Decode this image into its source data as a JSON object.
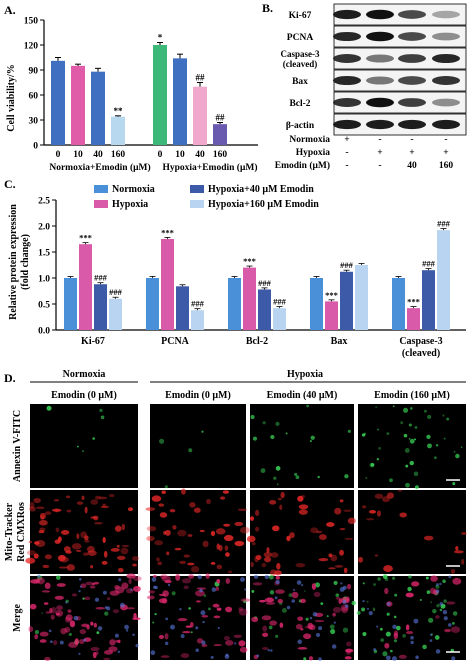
{
  "colors": {
    "normoxia": "#4a90d9",
    "hypoxia": "#d85aa8",
    "h40": "#3d5aa8",
    "h160": "#b8d4f0",
    "a_norm": "#3f6fc1",
    "a_hyp_ctrl": "#3cb878",
    "a_h10": "#e05ca8",
    "a_h40": "#f0a8cc",
    "a_h160": "#6a5ab0",
    "a_n160": "#b8d8f0"
  },
  "panelA": {
    "label": "A.",
    "ylabel": "Cell viability/%",
    "yticks": [
      "0",
      "30",
      "60",
      "90",
      "120",
      "150"
    ],
    "group1_label": "Normoxia+Emodin (μM)",
    "group2_label": "Hypoxia+Emodin (μM)",
    "chart_data": {
      "type": "bar",
      "categories": [
        "0",
        "10",
        "40",
        "160",
        "0",
        "10",
        "40",
        "160"
      ],
      "values": [
        101,
        95,
        88,
        34,
        120,
        104,
        70,
        25
      ],
      "errors": [
        4,
        2,
        4,
        1,
        3,
        5,
        5,
        2
      ],
      "ylim": [
        0,
        150
      ],
      "annotations": [
        "",
        "",
        "",
        "**",
        "*",
        "",
        "##",
        "##"
      ]
    }
  },
  "panelB": {
    "label": "B.",
    "bands": [
      "Ki-67",
      "PCNA",
      "Caspase-3 (cleaved)",
      "Bax",
      "Bcl-2",
      "β-actin"
    ],
    "caspase_line1": "Caspase-3",
    "caspase_line2": "(cleaved)",
    "rows": [
      {
        "name": "Normoxia",
        "vals": [
          "+",
          "-",
          "-",
          "-"
        ]
      },
      {
        "name": "Hypoxia",
        "vals": [
          "-",
          "+",
          "+",
          "+"
        ]
      },
      {
        "name": "Emodin (μM)",
        "vals": [
          "-",
          "-",
          "40",
          "160"
        ]
      }
    ]
  },
  "panelC": {
    "label": "C.",
    "ylabel_line1": "Relative protein expression",
    "ylabel_line2": "(fold change)",
    "yticks": [
      "0.0",
      "0.5",
      "1.0",
      "1.5",
      "2.0",
      "2.5"
    ],
    "legend": [
      "Normoxia",
      "Hypoxia",
      "Hypoxia+40 μM Emodin",
      "Hypoxia+160 μM Emodin"
    ],
    "cat_caspase_line1": "Caspase-3",
    "cat_caspase_line2": "(cleaved)",
    "chart_data": {
      "type": "bar",
      "categories": [
        "Ki-67",
        "PCNA",
        "Bcl-2",
        "Bax",
        "Caspase-3 (cleaved)"
      ],
      "ylim": [
        0,
        2.5
      ],
      "series": [
        {
          "name": "Normoxia",
          "values": [
            1.0,
            1.0,
            1.0,
            1.0,
            1.0
          ]
        },
        {
          "name": "Hypoxia",
          "values": [
            1.65,
            1.75,
            1.2,
            0.55,
            0.42
          ],
          "annotations": [
            "***",
            "***",
            "***",
            "***",
            "***"
          ]
        },
        {
          "name": "Hypoxia+40 μM Emodin",
          "values": [
            0.88,
            0.84,
            0.78,
            1.12,
            1.15
          ],
          "annotations": [
            "###",
            "",
            "###",
            "###",
            "###"
          ]
        },
        {
          "name": "Hypoxia+160 μM Emodin",
          "values": [
            0.6,
            0.38,
            0.42,
            1.25,
            1.92
          ],
          "annotations": [
            "###",
            "###",
            "###",
            "",
            "###"
          ]
        }
      ]
    }
  },
  "panelD": {
    "label": "D.",
    "normoxia": "Normoxia",
    "hypoxia": "Hypoxia",
    "columns": [
      "Emodin (0 μM)",
      "Emodin (0 μM)",
      "Emodin (40 μM)",
      "Emodin (160 μM)"
    ],
    "rows": [
      "Annexin V-FITC",
      "Mito-Tracker Red CMXRos",
      "Merge"
    ],
    "row1_line1": "Annexin V-FITC",
    "row2_line1": "Mito-Tracker",
    "row2_line2": "Red CMXRos",
    "row3_line1": "Merge"
  }
}
